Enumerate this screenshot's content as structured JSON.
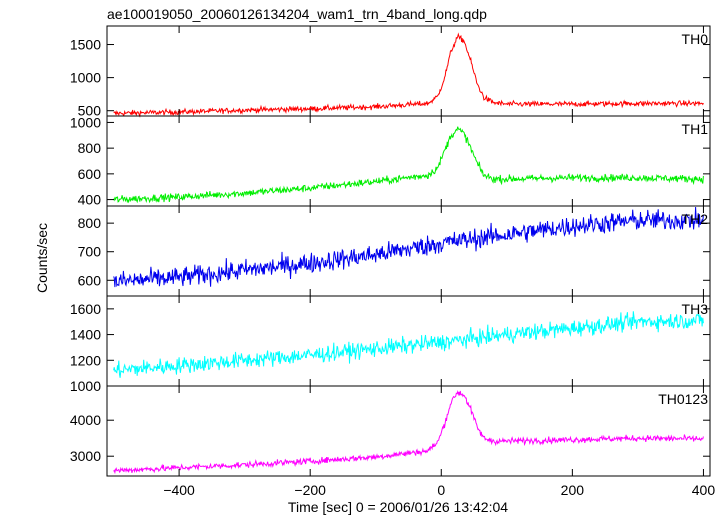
{
  "chart_data": {
    "type": "line",
    "title": "ae100019050_20060126134204_wam1_trn_4band_long.qdp",
    "xlabel": "Time [sec] 0 = 2006/01/26 13:42:04",
    "ylabel": "Counts/sec",
    "xlim": [
      -510,
      410
    ],
    "x_ticks": [
      -400,
      -200,
      0,
      200,
      400
    ],
    "x_tick_labels": [
      "−400",
      "−200",
      "0",
      "200",
      "400"
    ],
    "grid": false,
    "panels": [
      {
        "name": "TH0",
        "color": "#ff0000",
        "ylim": [
          420,
          1780
        ],
        "y_ticks": [
          500,
          1000,
          1500
        ],
        "noise": 28,
        "x": [
          -500,
          -400,
          -300,
          -200,
          -100,
          -20,
          -5,
          5,
          15,
          25,
          35,
          45,
          55,
          65,
          80,
          100,
          200,
          300,
          400
        ],
        "values": [
          460,
          480,
          510,
          530,
          560,
          610,
          720,
          1000,
          1400,
          1620,
          1550,
          1250,
          900,
          700,
          620,
          600,
          600,
          610,
          610
        ]
      },
      {
        "name": "TH1",
        "color": "#00ee00",
        "ylim": [
          350,
          1050
        ],
        "y_ticks": [
          400,
          600,
          800,
          1000
        ],
        "noise": 20,
        "x": [
          -500,
          -400,
          -300,
          -200,
          -100,
          -20,
          -5,
          5,
          15,
          25,
          35,
          45,
          55,
          65,
          80,
          100,
          200,
          300,
          400
        ],
        "values": [
          400,
          420,
          450,
          490,
          540,
          590,
          650,
          780,
          900,
          950,
          910,
          800,
          680,
          590,
          560,
          560,
          570,
          570,
          560
        ]
      },
      {
        "name": "TH2",
        "color": "#0000ee",
        "ylim": [
          545,
          860
        ],
        "y_ticks": [
          600,
          700,
          800
        ],
        "noise": 25,
        "x": [
          -500,
          -400,
          -300,
          -200,
          -100,
          0,
          100,
          200,
          300,
          400
        ],
        "values": [
          595,
          610,
          635,
          660,
          690,
          730,
          760,
          790,
          810,
          810
        ]
      },
      {
        "name": "TH3",
        "color": "#00ffff",
        "ylim": [
          1000,
          1700
        ],
        "y_ticks": [
          1000,
          1200,
          1400,
          1600
        ],
        "noise": 45,
        "x": [
          -500,
          -400,
          -300,
          -200,
          -100,
          0,
          100,
          200,
          300,
          400
        ],
        "values": [
          1120,
          1160,
          1200,
          1240,
          1290,
          1340,
          1400,
          1450,
          1500,
          1510
        ]
      },
      {
        "name": "TH0123",
        "color": "#ff00ff",
        "ylim": [
          2450,
          4950
        ],
        "y_ticks": [
          3000,
          4000
        ],
        "noise": 60,
        "x": [
          -500,
          -400,
          -300,
          -200,
          -100,
          -20,
          -5,
          5,
          15,
          25,
          35,
          45,
          55,
          65,
          80,
          100,
          200,
          300,
          400
        ],
        "values": [
          2600,
          2680,
          2760,
          2860,
          2980,
          3150,
          3400,
          3900,
          4500,
          4780,
          4700,
          4300,
          3800,
          3500,
          3420,
          3420,
          3460,
          3500,
          3480
        ]
      }
    ]
  }
}
